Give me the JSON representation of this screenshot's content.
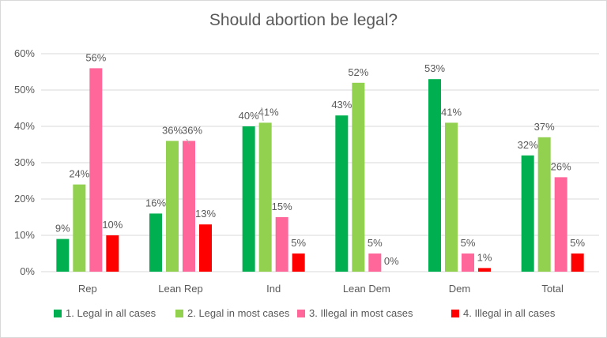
{
  "chart_data": {
    "type": "bar",
    "title": "Should abortion be legal?",
    "categories": [
      "Rep",
      "Lean Rep",
      "Ind",
      "Lean Dem",
      "Dem",
      "Total"
    ],
    "series": [
      {
        "name": "1. Legal in all cases",
        "color": "#00b050",
        "values": [
          9,
          16,
          40,
          43,
          53,
          32
        ],
        "labels": [
          "9%",
          "16%",
          "40%",
          "43%",
          "53%",
          "32%"
        ]
      },
      {
        "name": "2. Legal in most cases",
        "color": "#92d050",
        "values": [
          24,
          36,
          41,
          52,
          41,
          37
        ],
        "labels": [
          "24%",
          "36%",
          "41%",
          "52%",
          "41%",
          "37%"
        ]
      },
      {
        "name": "3. Illegal in most cases",
        "color": "#ff6699",
        "values": [
          56,
          36,
          15,
          5,
          5,
          26
        ],
        "labels": [
          "56%",
          "36%",
          "15%",
          "5%",
          "5%",
          "26%"
        ]
      },
      {
        "name": "4. Illegal in all cases",
        "color": "#ff0000",
        "values": [
          10,
          13,
          5,
          0,
          1,
          5
        ],
        "labels": [
          "10%",
          "13%",
          "5%",
          "0%",
          "1%",
          "5%"
        ]
      }
    ],
    "ylim": [
      0,
      60
    ],
    "yticks": [
      0,
      10,
      20,
      30,
      40,
      50,
      60
    ],
    "ytick_labels": [
      "0%",
      "10%",
      "20%",
      "30%",
      "40%",
      "50%",
      "60%"
    ],
    "grid": true,
    "legend": "bottom"
  }
}
